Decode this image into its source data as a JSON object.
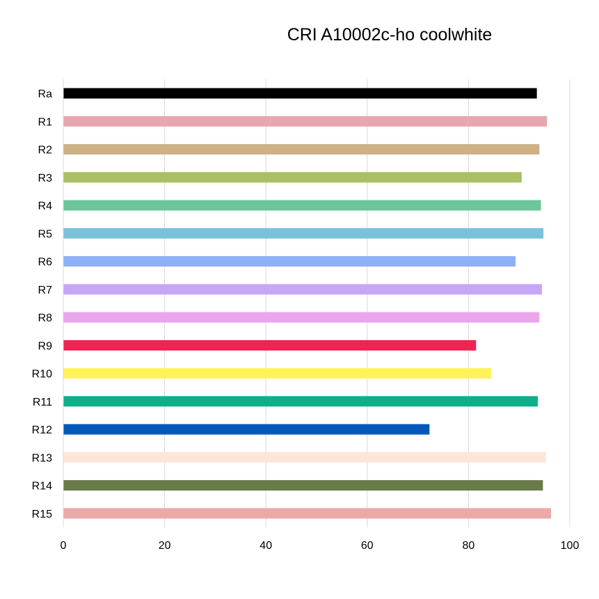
{
  "chart_data": {
    "type": "bar",
    "orientation": "horizontal",
    "title": "CRI A10002c-ho coolwhite",
    "xlabel": "",
    "ylabel": "",
    "xlim": [
      0,
      100
    ],
    "x_ticks": [
      0,
      20,
      40,
      60,
      80,
      100
    ],
    "grid": true,
    "legend": "none",
    "categories": [
      "Ra",
      "R1",
      "R2",
      "R3",
      "R4",
      "R5",
      "R6",
      "R7",
      "R8",
      "R9",
      "R10",
      "R11",
      "R12",
      "R13",
      "R14",
      "R15"
    ],
    "values": [
      93.5,
      95.5,
      94,
      90.5,
      94.3,
      94.8,
      89.3,
      94.5,
      94,
      81.5,
      84.5,
      93.7,
      72.3,
      95.3,
      94.7,
      96.3
    ],
    "colors": [
      "#000000",
      "#e6a8ae",
      "#cdb185",
      "#a9c064",
      "#6dc59b",
      "#7cc1da",
      "#8eb0f7",
      "#c8a6f7",
      "#eaa6ec",
      "#ec2552",
      "#fdf25a",
      "#0fae8b",
      "#0059bb",
      "#fde6d8",
      "#6a7b4b",
      "#eaaaa8"
    ]
  }
}
